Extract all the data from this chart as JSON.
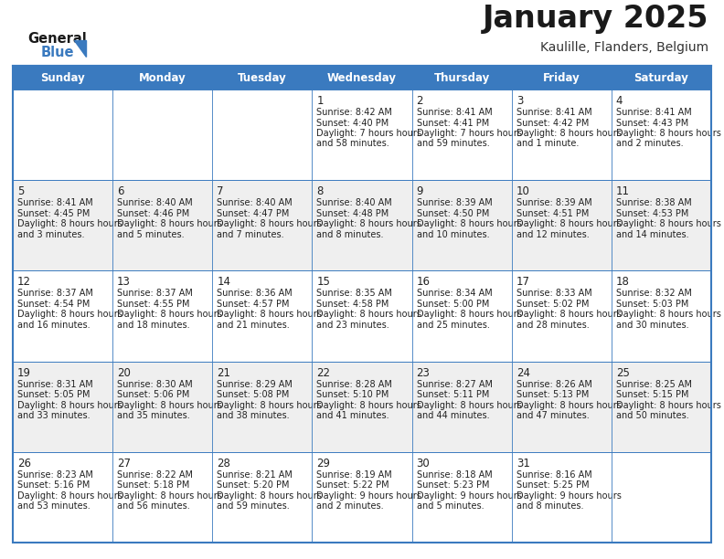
{
  "title": "January 2025",
  "subtitle": "Kaulille, Flanders, Belgium",
  "header_color": "#3a7abf",
  "header_text_color": "#ffffff",
  "days_of_week": [
    "Sunday",
    "Monday",
    "Tuesday",
    "Wednesday",
    "Thursday",
    "Friday",
    "Saturday"
  ],
  "row_alt_colors": [
    "#ffffff",
    "#efefef"
  ],
  "border_color": "#3a7abf",
  "text_color": "#222222",
  "calendar_data": [
    [
      {
        "day": "",
        "sunrise": "",
        "sunset": "",
        "daylight": ""
      },
      {
        "day": "",
        "sunrise": "",
        "sunset": "",
        "daylight": ""
      },
      {
        "day": "",
        "sunrise": "",
        "sunset": "",
        "daylight": ""
      },
      {
        "day": "1",
        "sunrise": "8:42 AM",
        "sunset": "4:40 PM",
        "daylight": "7 hours and 58 minutes."
      },
      {
        "day": "2",
        "sunrise": "8:41 AM",
        "sunset": "4:41 PM",
        "daylight": "7 hours and 59 minutes."
      },
      {
        "day": "3",
        "sunrise": "8:41 AM",
        "sunset": "4:42 PM",
        "daylight": "8 hours and 1 minute."
      },
      {
        "day": "4",
        "sunrise": "8:41 AM",
        "sunset": "4:43 PM",
        "daylight": "8 hours and 2 minutes."
      }
    ],
    [
      {
        "day": "5",
        "sunrise": "8:41 AM",
        "sunset": "4:45 PM",
        "daylight": "8 hours and 3 minutes."
      },
      {
        "day": "6",
        "sunrise": "8:40 AM",
        "sunset": "4:46 PM",
        "daylight": "8 hours and 5 minutes."
      },
      {
        "day": "7",
        "sunrise": "8:40 AM",
        "sunset": "4:47 PM",
        "daylight": "8 hours and 7 minutes."
      },
      {
        "day": "8",
        "sunrise": "8:40 AM",
        "sunset": "4:48 PM",
        "daylight": "8 hours and 8 minutes."
      },
      {
        "day": "9",
        "sunrise": "8:39 AM",
        "sunset": "4:50 PM",
        "daylight": "8 hours and 10 minutes."
      },
      {
        "day": "10",
        "sunrise": "8:39 AM",
        "sunset": "4:51 PM",
        "daylight": "8 hours and 12 minutes."
      },
      {
        "day": "11",
        "sunrise": "8:38 AM",
        "sunset": "4:53 PM",
        "daylight": "8 hours and 14 minutes."
      }
    ],
    [
      {
        "day": "12",
        "sunrise": "8:37 AM",
        "sunset": "4:54 PM",
        "daylight": "8 hours and 16 minutes."
      },
      {
        "day": "13",
        "sunrise": "8:37 AM",
        "sunset": "4:55 PM",
        "daylight": "8 hours and 18 minutes."
      },
      {
        "day": "14",
        "sunrise": "8:36 AM",
        "sunset": "4:57 PM",
        "daylight": "8 hours and 21 minutes."
      },
      {
        "day": "15",
        "sunrise": "8:35 AM",
        "sunset": "4:58 PM",
        "daylight": "8 hours and 23 minutes."
      },
      {
        "day": "16",
        "sunrise": "8:34 AM",
        "sunset": "5:00 PM",
        "daylight": "8 hours and 25 minutes."
      },
      {
        "day": "17",
        "sunrise": "8:33 AM",
        "sunset": "5:02 PM",
        "daylight": "8 hours and 28 minutes."
      },
      {
        "day": "18",
        "sunrise": "8:32 AM",
        "sunset": "5:03 PM",
        "daylight": "8 hours and 30 minutes."
      }
    ],
    [
      {
        "day": "19",
        "sunrise": "8:31 AM",
        "sunset": "5:05 PM",
        "daylight": "8 hours and 33 minutes."
      },
      {
        "day": "20",
        "sunrise": "8:30 AM",
        "sunset": "5:06 PM",
        "daylight": "8 hours and 35 minutes."
      },
      {
        "day": "21",
        "sunrise": "8:29 AM",
        "sunset": "5:08 PM",
        "daylight": "8 hours and 38 minutes."
      },
      {
        "day": "22",
        "sunrise": "8:28 AM",
        "sunset": "5:10 PM",
        "daylight": "8 hours and 41 minutes."
      },
      {
        "day": "23",
        "sunrise": "8:27 AM",
        "sunset": "5:11 PM",
        "daylight": "8 hours and 44 minutes."
      },
      {
        "day": "24",
        "sunrise": "8:26 AM",
        "sunset": "5:13 PM",
        "daylight": "8 hours and 47 minutes."
      },
      {
        "day": "25",
        "sunrise": "8:25 AM",
        "sunset": "5:15 PM",
        "daylight": "8 hours and 50 minutes."
      }
    ],
    [
      {
        "day": "26",
        "sunrise": "8:23 AM",
        "sunset": "5:16 PM",
        "daylight": "8 hours and 53 minutes."
      },
      {
        "day": "27",
        "sunrise": "8:22 AM",
        "sunset": "5:18 PM",
        "daylight": "8 hours and 56 minutes."
      },
      {
        "day": "28",
        "sunrise": "8:21 AM",
        "sunset": "5:20 PM",
        "daylight": "8 hours and 59 minutes."
      },
      {
        "day": "29",
        "sunrise": "8:19 AM",
        "sunset": "5:22 PM",
        "daylight": "9 hours and 2 minutes."
      },
      {
        "day": "30",
        "sunrise": "8:18 AM",
        "sunset": "5:23 PM",
        "daylight": "9 hours and 5 minutes."
      },
      {
        "day": "31",
        "sunrise": "8:16 AM",
        "sunset": "5:25 PM",
        "daylight": "9 hours and 8 minutes."
      },
      {
        "day": "",
        "sunrise": "",
        "sunset": "",
        "daylight": ""
      }
    ]
  ]
}
